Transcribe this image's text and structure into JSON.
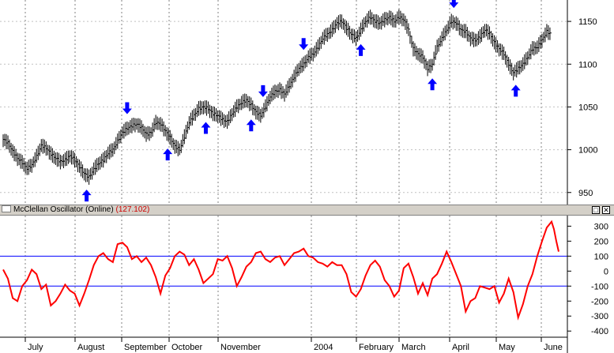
{
  "chart_data": [
    {
      "type": "ohlc-bar",
      "y_ticks": [
        950,
        1000,
        1050,
        1100,
        1150
      ],
      "ylim": [
        935,
        1175
      ],
      "grid": true,
      "grid_style": "dotted",
      "months": [
        "July",
        "August",
        "September",
        "October",
        "November",
        "2004",
        "February",
        "March",
        "April",
        "May",
        "June"
      ],
      "xlim": [
        0,
        232
      ],
      "points": [
        [
          0,
          1012
        ],
        [
          2,
          1008
        ],
        [
          4,
          998
        ],
        [
          6,
          990
        ],
        [
          8,
          985
        ],
        [
          10,
          978
        ],
        [
          12,
          982
        ],
        [
          14,
          992
        ],
        [
          16,
          1005
        ],
        [
          18,
          1002
        ],
        [
          20,
          995
        ],
        [
          22,
          990
        ],
        [
          24,
          986
        ],
        [
          26,
          988
        ],
        [
          28,
          993
        ],
        [
          30,
          988
        ],
        [
          32,
          980
        ],
        [
          34,
          972
        ],
        [
          36,
          968
        ],
        [
          38,
          977
        ],
        [
          40,
          984
        ],
        [
          42,
          988
        ],
        [
          44,
          996
        ],
        [
          46,
          1000
        ],
        [
          48,
          1010
        ],
        [
          50,
          1020
        ],
        [
          52,
          1025
        ],
        [
          54,
          1028
        ],
        [
          56,
          1030
        ],
        [
          58,
          1026
        ],
        [
          60,
          1018
        ],
        [
          62,
          1020
        ],
        [
          64,
          1032
        ],
        [
          66,
          1030
        ],
        [
          68,
          1022
        ],
        [
          70,
          1014
        ],
        [
          72,
          1004
        ],
        [
          74,
          1000
        ],
        [
          76,
          1015
        ],
        [
          78,
          1032
        ],
        [
          80,
          1040
        ],
        [
          82,
          1048
        ],
        [
          84,
          1050
        ],
        [
          86,
          1048
        ],
        [
          88,
          1042
        ],
        [
          90,
          1040
        ],
        [
          92,
          1035
        ],
        [
          94,
          1033
        ],
        [
          96,
          1042
        ],
        [
          98,
          1050
        ],
        [
          100,
          1055
        ],
        [
          102,
          1058
        ],
        [
          104,
          1052
        ],
        [
          106,
          1044
        ],
        [
          108,
          1040
        ],
        [
          110,
          1050
        ],
        [
          112,
          1062
        ],
        [
          114,
          1068
        ],
        [
          116,
          1070
        ],
        [
          118,
          1065
        ],
        [
          120,
          1075
        ],
        [
          122,
          1085
        ],
        [
          124,
          1095
        ],
        [
          126,
          1100
        ],
        [
          128,
          1108
        ],
        [
          130,
          1112
        ],
        [
          132,
          1120
        ],
        [
          134,
          1130
        ],
        [
          136,
          1135
        ],
        [
          138,
          1140
        ],
        [
          140,
          1148
        ],
        [
          142,
          1150
        ],
        [
          144,
          1142
        ],
        [
          146,
          1135
        ],
        [
          148,
          1130
        ],
        [
          150,
          1140
        ],
        [
          152,
          1150
        ],
        [
          154,
          1155
        ],
        [
          156,
          1150
        ],
        [
          158,
          1148
        ],
        [
          160,
          1152
        ],
        [
          162,
          1155
        ],
        [
          164,
          1150
        ],
        [
          166,
          1155
        ],
        [
          168,
          1152
        ],
        [
          170,
          1140
        ],
        [
          172,
          1118
        ],
        [
          174,
          1112
        ],
        [
          176,
          1108
        ],
        [
          178,
          1095
        ],
        [
          180,
          1100
        ],
        [
          182,
          1120
        ],
        [
          184,
          1130
        ],
        [
          186,
          1140
        ],
        [
          188,
          1150
        ],
        [
          190,
          1148
        ],
        [
          192,
          1140
        ],
        [
          194,
          1138
        ],
        [
          196,
          1130
        ],
        [
          198,
          1128
        ],
        [
          200,
          1132
        ],
        [
          202,
          1140
        ],
        [
          204,
          1136
        ],
        [
          206,
          1125
        ],
        [
          208,
          1118
        ],
        [
          210,
          1112
        ],
        [
          212,
          1100
        ],
        [
          214,
          1090
        ],
        [
          216,
          1095
        ],
        [
          218,
          1100
        ],
        [
          220,
          1108
        ],
        [
          222,
          1118
        ],
        [
          224,
          1120
        ],
        [
          226,
          1128
        ],
        [
          228,
          1138
        ],
        [
          230,
          1135
        ]
      ],
      "arrows": [
        {
          "x": 35,
          "dir": "up"
        },
        {
          "x": 52,
          "dir": "down"
        },
        {
          "x": 69,
          "dir": "up"
        },
        {
          "x": 85,
          "dir": "up"
        },
        {
          "x": 104,
          "dir": "up"
        },
        {
          "x": 109,
          "dir": "down"
        },
        {
          "x": 126,
          "dir": "down"
        },
        {
          "x": 150,
          "dir": "up"
        },
        {
          "x": 180,
          "dir": "up"
        },
        {
          "x": 189,
          "dir": "down"
        },
        {
          "x": 215,
          "dir": "up"
        }
      ]
    },
    {
      "type": "line",
      "title": "McClellan Oscillator (Online)",
      "last_value": "(127.102)",
      "y_ticks": [
        300,
        200,
        100,
        0,
        -100,
        -200,
        -300,
        -400
      ],
      "ylim": [
        -420,
        360
      ],
      "reference_lines": [
        100,
        -100
      ],
      "grid": true,
      "xlim": [
        0,
        232
      ],
      "series": [
        {
          "color": "#ff0000",
          "points": [
            [
              0,
              10
            ],
            [
              2,
              -50
            ],
            [
              4,
              -180
            ],
            [
              6,
              -200
            ],
            [
              8,
              -100
            ],
            [
              10,
              -60
            ],
            [
              12,
              10
            ],
            [
              14,
              -20
            ],
            [
              16,
              -120
            ],
            [
              18,
              -90
            ],
            [
              20,
              -230
            ],
            [
              22,
              -200
            ],
            [
              24,
              -150
            ],
            [
              26,
              -90
            ],
            [
              28,
              -130
            ],
            [
              30,
              -150
            ],
            [
              32,
              -230
            ],
            [
              34,
              -150
            ],
            [
              36,
              -60
            ],
            [
              38,
              40
            ],
            [
              40,
              100
            ],
            [
              42,
              120
            ],
            [
              44,
              80
            ],
            [
              46,
              60
            ],
            [
              48,
              180
            ],
            [
              50,
              190
            ],
            [
              52,
              160
            ],
            [
              54,
              80
            ],
            [
              56,
              100
            ],
            [
              58,
              60
            ],
            [
              60,
              90
            ],
            [
              62,
              40
            ],
            [
              64,
              -40
            ],
            [
              66,
              -150
            ],
            [
              68,
              -30
            ],
            [
              70,
              20
            ],
            [
              72,
              100
            ],
            [
              74,
              130
            ],
            [
              76,
              110
            ],
            [
              78,
              40
            ],
            [
              80,
              80
            ],
            [
              82,
              10
            ],
            [
              84,
              -80
            ],
            [
              86,
              -50
            ],
            [
              88,
              -20
            ],
            [
              90,
              80
            ],
            [
              92,
              70
            ],
            [
              94,
              100
            ],
            [
              96,
              20
            ],
            [
              98,
              -100
            ],
            [
              100,
              -40
            ],
            [
              102,
              30
            ],
            [
              104,
              60
            ],
            [
              106,
              120
            ],
            [
              108,
              130
            ],
            [
              110,
              80
            ],
            [
              112,
              60
            ],
            [
              114,
              90
            ],
            [
              116,
              100
            ],
            [
              118,
              40
            ],
            [
              120,
              80
            ],
            [
              122,
              120
            ],
            [
              124,
              130
            ],
            [
              126,
              150
            ],
            [
              128,
              100
            ],
            [
              130,
              90
            ],
            [
              132,
              60
            ],
            [
              134,
              50
            ],
            [
              136,
              30
            ],
            [
              138,
              60
            ],
            [
              140,
              40
            ],
            [
              142,
              40
            ],
            [
              144,
              -20
            ],
            [
              146,
              -140
            ],
            [
              148,
              -170
            ],
            [
              150,
              -120
            ],
            [
              152,
              -30
            ],
            [
              154,
              40
            ],
            [
              156,
              70
            ],
            [
              158,
              30
            ],
            [
              160,
              -60
            ],
            [
              162,
              -100
            ],
            [
              164,
              -170
            ],
            [
              166,
              -130
            ],
            [
              168,
              20
            ],
            [
              170,
              50
            ],
            [
              172,
              -40
            ],
            [
              174,
              -150
            ],
            [
              176,
              -80
            ],
            [
              178,
              -160
            ],
            [
              180,
              -50
            ],
            [
              182,
              -20
            ],
            [
              184,
              50
            ],
            [
              186,
              130
            ],
            [
              188,
              60
            ],
            [
              190,
              -20
            ],
            [
              192,
              -100
            ],
            [
              194,
              -270
            ],
            [
              196,
              -200
            ],
            [
              198,
              -180
            ],
            [
              200,
              -100
            ],
            [
              202,
              -110
            ],
            [
              204,
              -120
            ],
            [
              206,
              -100
            ],
            [
              208,
              -210
            ],
            [
              210,
              -150
            ],
            [
              212,
              -50
            ],
            [
              214,
              -140
            ],
            [
              216,
              -310
            ],
            [
              218,
              -220
            ],
            [
              220,
              -100
            ],
            [
              222,
              -20
            ],
            [
              224,
              100
            ],
            [
              226,
              200
            ],
            [
              228,
              290
            ],
            [
              230,
              330
            ],
            [
              231,
              280
            ],
            [
              232,
              200
            ],
            [
              233,
              130
            ]
          ]
        }
      ]
    }
  ]
}
